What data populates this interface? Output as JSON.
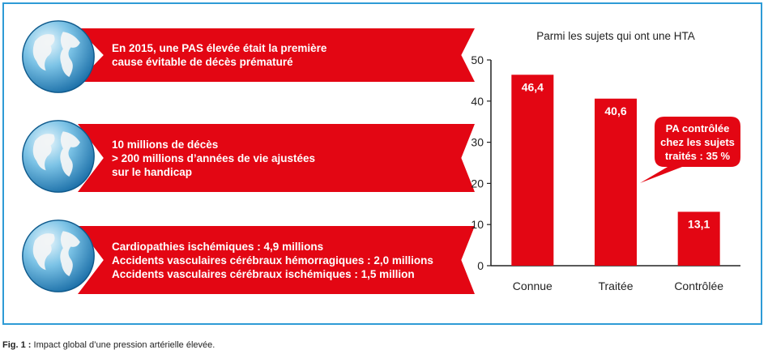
{
  "rows": [
    {
      "lines": [
        "En 2015, une PAS élevée était la première",
        "cause évitable de décès prématuré"
      ],
      "icon": "globe-icon"
    },
    {
      "lines": [
        "10 millions de décès",
        "> 200 millions d’années de vie ajustées",
        "sur le handicap"
      ],
      "icon": "globe-icon"
    },
    {
      "lines": [
        "Cardiopathies ischémiques : 4,9 millions",
        "Accidents vasculaires cérébraux hémorragiques : 2,0 millions",
        "Accidents vasculaires cérébraux ischémiques : 1,5 million"
      ],
      "icon": "globe-icon"
    }
  ],
  "chart_data": {
    "type": "bar",
    "title": "Parmi les sujets qui ont une HTA",
    "categories": [
      "Connue",
      "Traitée",
      "Contrôlée"
    ],
    "values": [
      46.4,
      40.6,
      13.1
    ],
    "value_labels": [
      "46,4",
      "40,6",
      "13,1"
    ],
    "ylim": [
      0,
      50
    ],
    "yticks": [
      0,
      10,
      20,
      30,
      40,
      50
    ],
    "xlabel": "",
    "ylabel": "",
    "grid": false,
    "bar_color": "#e30613",
    "annotation": {
      "lines": [
        "PA contrôlée",
        "chez les sujets",
        "traités : 35 %"
      ]
    }
  },
  "caption": {
    "label": "Fig. 1 :",
    "text": "Impact global d’une pression artérielle élevée."
  },
  "colors": {
    "accent": "#e30613",
    "frame": "#2e9bd6"
  }
}
